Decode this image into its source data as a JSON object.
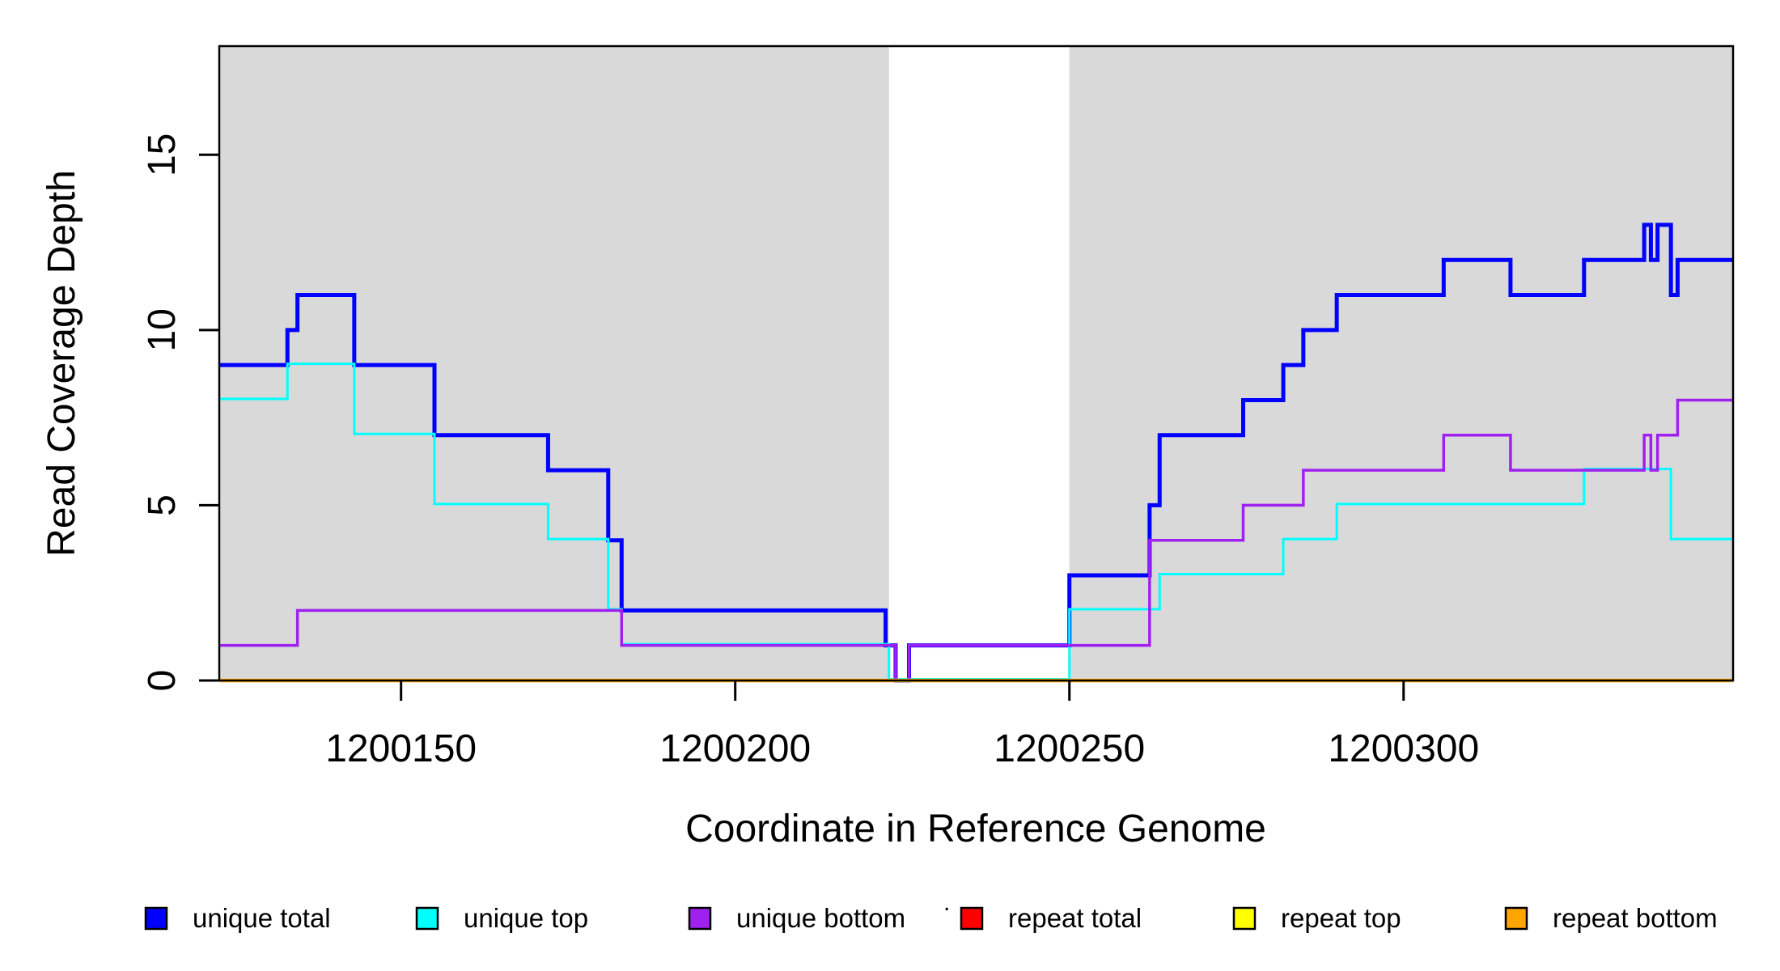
{
  "figure": {
    "xlabel": "Coordinate in Reference Genome",
    "ylabel": "Read Coverage Depth",
    "stray_mark": "."
  },
  "chart_data": {
    "type": "line",
    "subtype": "step-coverage-plot",
    "title": "",
    "xlabel": "Coordinate in Reference Genome",
    "ylabel": "Read Coverage Depth",
    "xlim": [
      1200122.8,
      1200349.3
    ],
    "ylim": [
      0,
      18.1
    ],
    "grid": false,
    "x_tick_values": [
      1200150,
      1200200,
      1200250,
      1200300
    ],
    "x_tick_labels": [
      "1200150",
      "1200200",
      "1200250",
      "1200300"
    ],
    "y_tick_values": [
      0,
      5,
      10,
      15
    ],
    "y_tick_labels": [
      "0",
      "5",
      "10",
      "15"
    ],
    "y_tick_label_rotation_deg": -90,
    "background_color": "#ffffff",
    "shaded_regions": [
      {
        "name": "left-gray-region",
        "x0": 1200122.8,
        "x1": 1200223,
        "color": "#D9D9D9"
      },
      {
        "name": "right-gray-region",
        "x0": 1200250,
        "x1": 1200349.3,
        "color": "#D9D9D9"
      }
    ],
    "series_note": "steps = [coordinate, depth] pairs; depth holds from that coordinate until the next breakpoint; last pair marks the plot edge",
    "series": [
      {
        "name": "unique total",
        "color": "#0000FF",
        "line_width": 5,
        "steps": [
          [
            1200122.8,
            9
          ],
          [
            1200133,
            10
          ],
          [
            1200134.5,
            11
          ],
          [
            1200143,
            9
          ],
          [
            1200155,
            7
          ],
          [
            1200172,
            6
          ],
          [
            1200181,
            4
          ],
          [
            1200183,
            2
          ],
          [
            1200222.5,
            1
          ],
          [
            1200224,
            0
          ],
          [
            1200226,
            1
          ],
          [
            1200250,
            3
          ],
          [
            1200262,
            5
          ],
          [
            1200263.5,
            7
          ],
          [
            1200276,
            8
          ],
          [
            1200282,
            9
          ],
          [
            1200285,
            10
          ],
          [
            1200290,
            11
          ],
          [
            1200306,
            12
          ],
          [
            1200316,
            11
          ],
          [
            1200327,
            12
          ],
          [
            1200336,
            13
          ],
          [
            1200337,
            12
          ],
          [
            1200338,
            13
          ],
          [
            1200340,
            11
          ],
          [
            1200341,
            12
          ],
          [
            1200349.3,
            12
          ]
        ]
      },
      {
        "name": "unique top",
        "color": "#00FFFF",
        "line_width": 3,
        "steps": [
          [
            1200122.8,
            8
          ],
          [
            1200133,
            9
          ],
          [
            1200143,
            7
          ],
          [
            1200155,
            5
          ],
          [
            1200172,
            4
          ],
          [
            1200181,
            2
          ],
          [
            1200183,
            1
          ],
          [
            1200223,
            0
          ],
          [
            1200250,
            2
          ],
          [
            1200263.5,
            3
          ],
          [
            1200282,
            4
          ],
          [
            1200290,
            5
          ],
          [
            1200327,
            6
          ],
          [
            1200340,
            4
          ],
          [
            1200349.3,
            4
          ]
        ]
      },
      {
        "name": "unique bottom",
        "color": "#A020F0",
        "line_width": 3.5,
        "steps": [
          [
            1200122.8,
            1
          ],
          [
            1200134.5,
            2
          ],
          [
            1200183,
            1
          ],
          [
            1200224,
            0
          ],
          [
            1200226,
            1
          ],
          [
            1200262,
            4
          ],
          [
            1200276,
            5
          ],
          [
            1200285,
            6
          ],
          [
            1200306,
            7
          ],
          [
            1200316,
            6
          ],
          [
            1200336,
            7
          ],
          [
            1200337,
            6
          ],
          [
            1200338,
            7
          ],
          [
            1200341,
            8
          ],
          [
            1200349.3,
            8
          ]
        ]
      },
      {
        "name": "repeat total",
        "color": "#FF0000",
        "line_width": 3,
        "steps": [
          [
            1200122.8,
            0
          ],
          [
            1200349.3,
            0
          ]
        ]
      },
      {
        "name": "repeat top",
        "color": "#FFFF00",
        "line_width": 3,
        "steps": [
          [
            1200122.8,
            0
          ],
          [
            1200349.3,
            0
          ]
        ]
      },
      {
        "name": "repeat bottom",
        "color": "#FFA500",
        "line_width": 4.5,
        "steps": [
          [
            1200122.8,
            0
          ],
          [
            1200349.3,
            0
          ]
        ]
      }
    ],
    "legend": {
      "position": "bottom",
      "entries": [
        {
          "label": "unique total",
          "color": "#0000FF"
        },
        {
          "label": "unique top",
          "color": "#00FFFF"
        },
        {
          "label": "unique bottom",
          "color": "#A020F0"
        },
        {
          "label": "repeat total",
          "color": "#FF0000"
        },
        {
          "label": "repeat top",
          "color": "#FFFF00"
        },
        {
          "label": "repeat bottom",
          "color": "#FFA500"
        }
      ]
    }
  }
}
